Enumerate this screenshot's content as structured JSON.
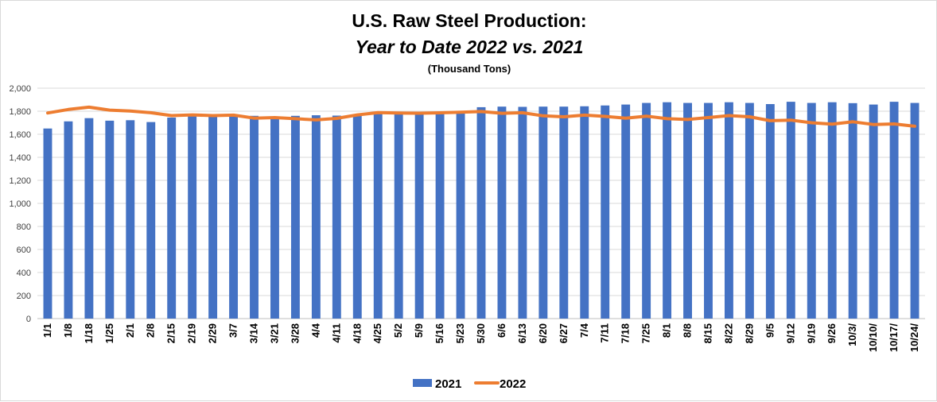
{
  "chart_data": {
    "type": "bar",
    "title": "U.S. Raw Steel Production:",
    "subtitle": "Year to Date 2022 vs. 2021",
    "units_label": "(Thousand Tons)",
    "xlabel": "",
    "ylabel": "",
    "ylim": [
      0,
      2000
    ],
    "yticks": [
      0,
      200,
      400,
      600,
      800,
      1000,
      1200,
      1400,
      1600,
      1800,
      2000
    ],
    "ytick_labels": [
      "0",
      "200",
      "400",
      "600",
      "800",
      "1,000",
      "1,200",
      "1,400",
      "1,600",
      "1,800",
      "2,000"
    ],
    "grid": true,
    "legend_position": "bottom",
    "categories": [
      "1/1",
      "1/8",
      "1/18",
      "1/25",
      "2/1",
      "2/8",
      "2/15",
      "2/19",
      "2/29",
      "3/7",
      "3/14",
      "3/21",
      "3/28",
      "4/4",
      "4/11",
      "4/18",
      "4/25",
      "5/2",
      "5/9",
      "5/16",
      "5/23",
      "5/30",
      "6/6",
      "6/13",
      "6/20",
      "6/27",
      "7/4",
      "7/11",
      "7/18",
      "7/25",
      "8/1",
      "8/8",
      "8/15",
      "8/22",
      "8/29",
      "9/5",
      "9/12",
      "9/19",
      "9/26",
      "10/3/",
      "10/10/",
      "10/17/",
      "10/24/"
    ],
    "series": [
      {
        "name": "2021",
        "kind": "bar",
        "color": "#4472C4",
        "values": [
          1650,
          1712,
          1740,
          1718,
          1722,
          1706,
          1745,
          1755,
          1760,
          1768,
          1760,
          1752,
          1760,
          1765,
          1762,
          1768,
          1778,
          1775,
          1778,
          1782,
          1790,
          1835,
          1840,
          1838,
          1840,
          1840,
          1843,
          1850,
          1858,
          1872,
          1878,
          1872,
          1872,
          1878,
          1872,
          1862,
          1882,
          1872,
          1878,
          1870,
          1858,
          1882,
          1872
        ]
      },
      {
        "name": "2022",
        "kind": "line",
        "color": "#ED7D31",
        "values": [
          1785,
          1815,
          1835,
          1810,
          1802,
          1787,
          1762,
          1768,
          1762,
          1766,
          1740,
          1745,
          1735,
          1725,
          1738,
          1768,
          1788,
          1784,
          1783,
          1786,
          1792,
          1797,
          1782,
          1787,
          1760,
          1752,
          1766,
          1755,
          1740,
          1757,
          1735,
          1728,
          1745,
          1762,
          1752,
          1718,
          1723,
          1700,
          1688,
          1708,
          1685,
          1690,
          1670
        ]
      }
    ]
  }
}
